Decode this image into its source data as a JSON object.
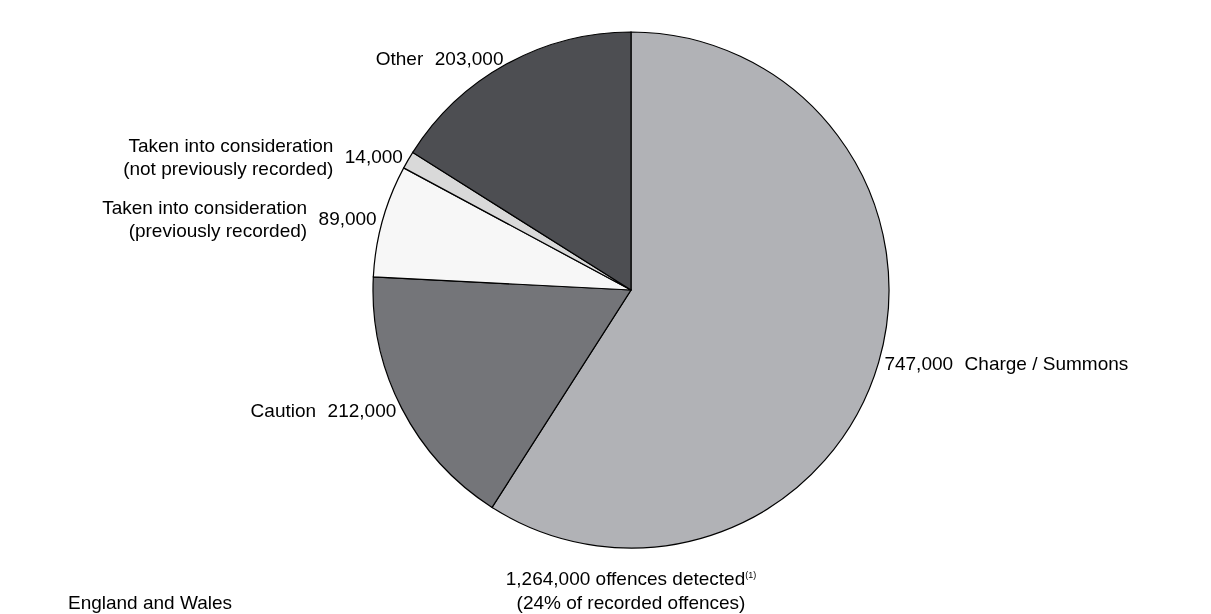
{
  "chart_data": {
    "type": "pie",
    "categories": [
      "Charge / Summons",
      "Caution",
      "Taken into consideration (previously recorded)",
      "Taken into consideration (not previously recorded)",
      "Other"
    ],
    "values": [
      747000,
      212000,
      89000,
      14000,
      203000
    ],
    "colors": [
      "#b1b2b6",
      "#747579",
      "#f7f7f7",
      "#d9d9d9",
      "#4d4e52"
    ],
    "value_labels": [
      "747,000",
      "212,000",
      "89,000",
      "14,000",
      "203,000"
    ],
    "annotations": [
      "1,264,000  offences detected$^{(1)}$",
      "(24% of recorded offences)",
      "England and Wales"
    ]
  }
}
